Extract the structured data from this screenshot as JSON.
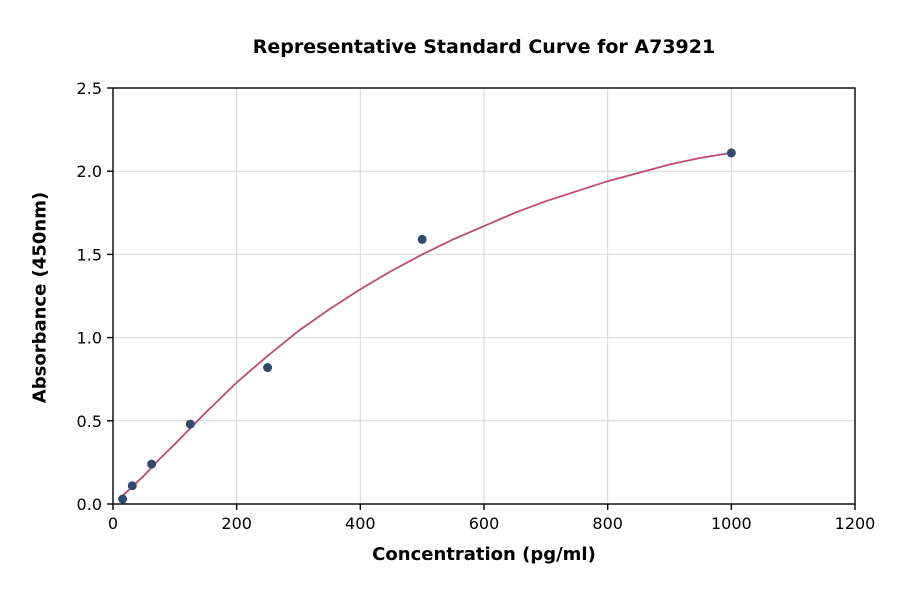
{
  "chart_data": {
    "type": "scatter",
    "title": "Representative Standard Curve for A73921",
    "xlabel": "Concentration (pg/ml)",
    "ylabel": "Absorbance (450nm)",
    "xlim": [
      0,
      1200
    ],
    "ylim": [
      0,
      2.5
    ],
    "x_ticks": [
      0,
      200,
      400,
      600,
      800,
      1000,
      1200
    ],
    "y_ticks": [
      0.0,
      0.5,
      1.0,
      1.5,
      2.0,
      2.5
    ],
    "grid": true,
    "legend": "none",
    "points": [
      {
        "x": 15.6,
        "y": 0.03
      },
      {
        "x": 31.2,
        "y": 0.11
      },
      {
        "x": 62.5,
        "y": 0.24
      },
      {
        "x": 125,
        "y": 0.48
      },
      {
        "x": 250,
        "y": 0.82
      },
      {
        "x": 500,
        "y": 1.59
      },
      {
        "x": 1000,
        "y": 2.11
      }
    ],
    "fit_curve": [
      [
        15.6,
        0.05
      ],
      [
        30,
        0.1
      ],
      [
        50,
        0.17
      ],
      [
        75,
        0.27
      ],
      [
        100,
        0.36
      ],
      [
        150,
        0.55
      ],
      [
        200,
        0.73
      ],
      [
        250,
        0.89
      ],
      [
        300,
        1.04
      ],
      [
        350,
        1.17
      ],
      [
        400,
        1.29
      ],
      [
        450,
        1.4
      ],
      [
        500,
        1.5
      ],
      [
        550,
        1.59
      ],
      [
        600,
        1.67
      ],
      [
        650,
        1.75
      ],
      [
        700,
        1.82
      ],
      [
        750,
        1.88
      ],
      [
        800,
        1.94
      ],
      [
        850,
        1.99
      ],
      [
        900,
        2.04
      ],
      [
        950,
        2.08
      ],
      [
        1000,
        2.11
      ]
    ],
    "colors": {
      "points": "#2e4d6e",
      "curve": "#bf4a6e",
      "grid": "#d6d6d6",
      "axis": "#000000",
      "background": "#ffffff"
    }
  }
}
